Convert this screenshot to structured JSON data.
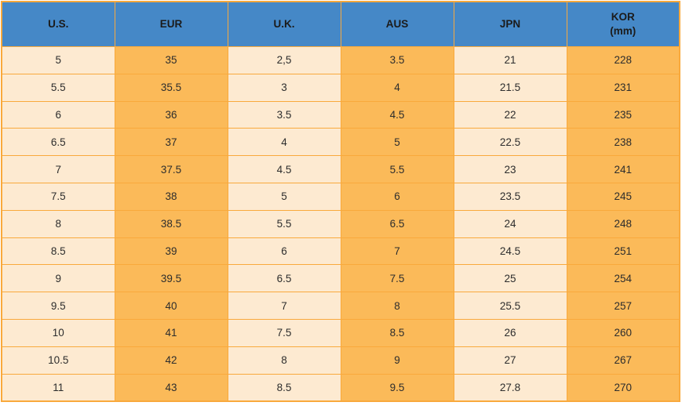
{
  "colors": {
    "header_bg": "#4588C7",
    "cell_cream": "#FDEAD1",
    "cell_orange": "#FBBA59",
    "grid": "#F9A93C",
    "text": "#2D2D2D"
  },
  "chart_data": {
    "type": "table",
    "columns": [
      {
        "label": "U.S."
      },
      {
        "label": "EUR"
      },
      {
        "label": "U.K."
      },
      {
        "label": "AUS"
      },
      {
        "label": "JPN"
      },
      {
        "label": "KOR",
        "sublabel": "(mm)"
      }
    ],
    "rows": [
      [
        "5",
        "35",
        "2,5",
        "3.5",
        "21",
        "228"
      ],
      [
        "5.5",
        "35.5",
        "3",
        "4",
        "21.5",
        "231"
      ],
      [
        "6",
        "36",
        "3.5",
        "4.5",
        "22",
        "235"
      ],
      [
        "6.5",
        "37",
        "4",
        "5",
        "22.5",
        "238"
      ],
      [
        "7",
        "37.5",
        "4.5",
        "5.5",
        "23",
        "241"
      ],
      [
        "7.5",
        "38",
        "5",
        "6",
        "23.5",
        "245"
      ],
      [
        "8",
        "38.5",
        "5.5",
        "6.5",
        "24",
        "248"
      ],
      [
        "8.5",
        "39",
        "6",
        "7",
        "24.5",
        "251"
      ],
      [
        "9",
        "39.5",
        "6.5",
        "7.5",
        "25",
        "254"
      ],
      [
        "9.5",
        "40",
        "7",
        "8",
        "25.5",
        "257"
      ],
      [
        "10",
        "41",
        "7.5",
        "8.5",
        "26",
        "260"
      ],
      [
        "10.5",
        "42",
        "8",
        "9",
        "27",
        "267"
      ],
      [
        "11",
        "43",
        "8.5",
        "9.5",
        "27.8",
        "270"
      ]
    ]
  }
}
